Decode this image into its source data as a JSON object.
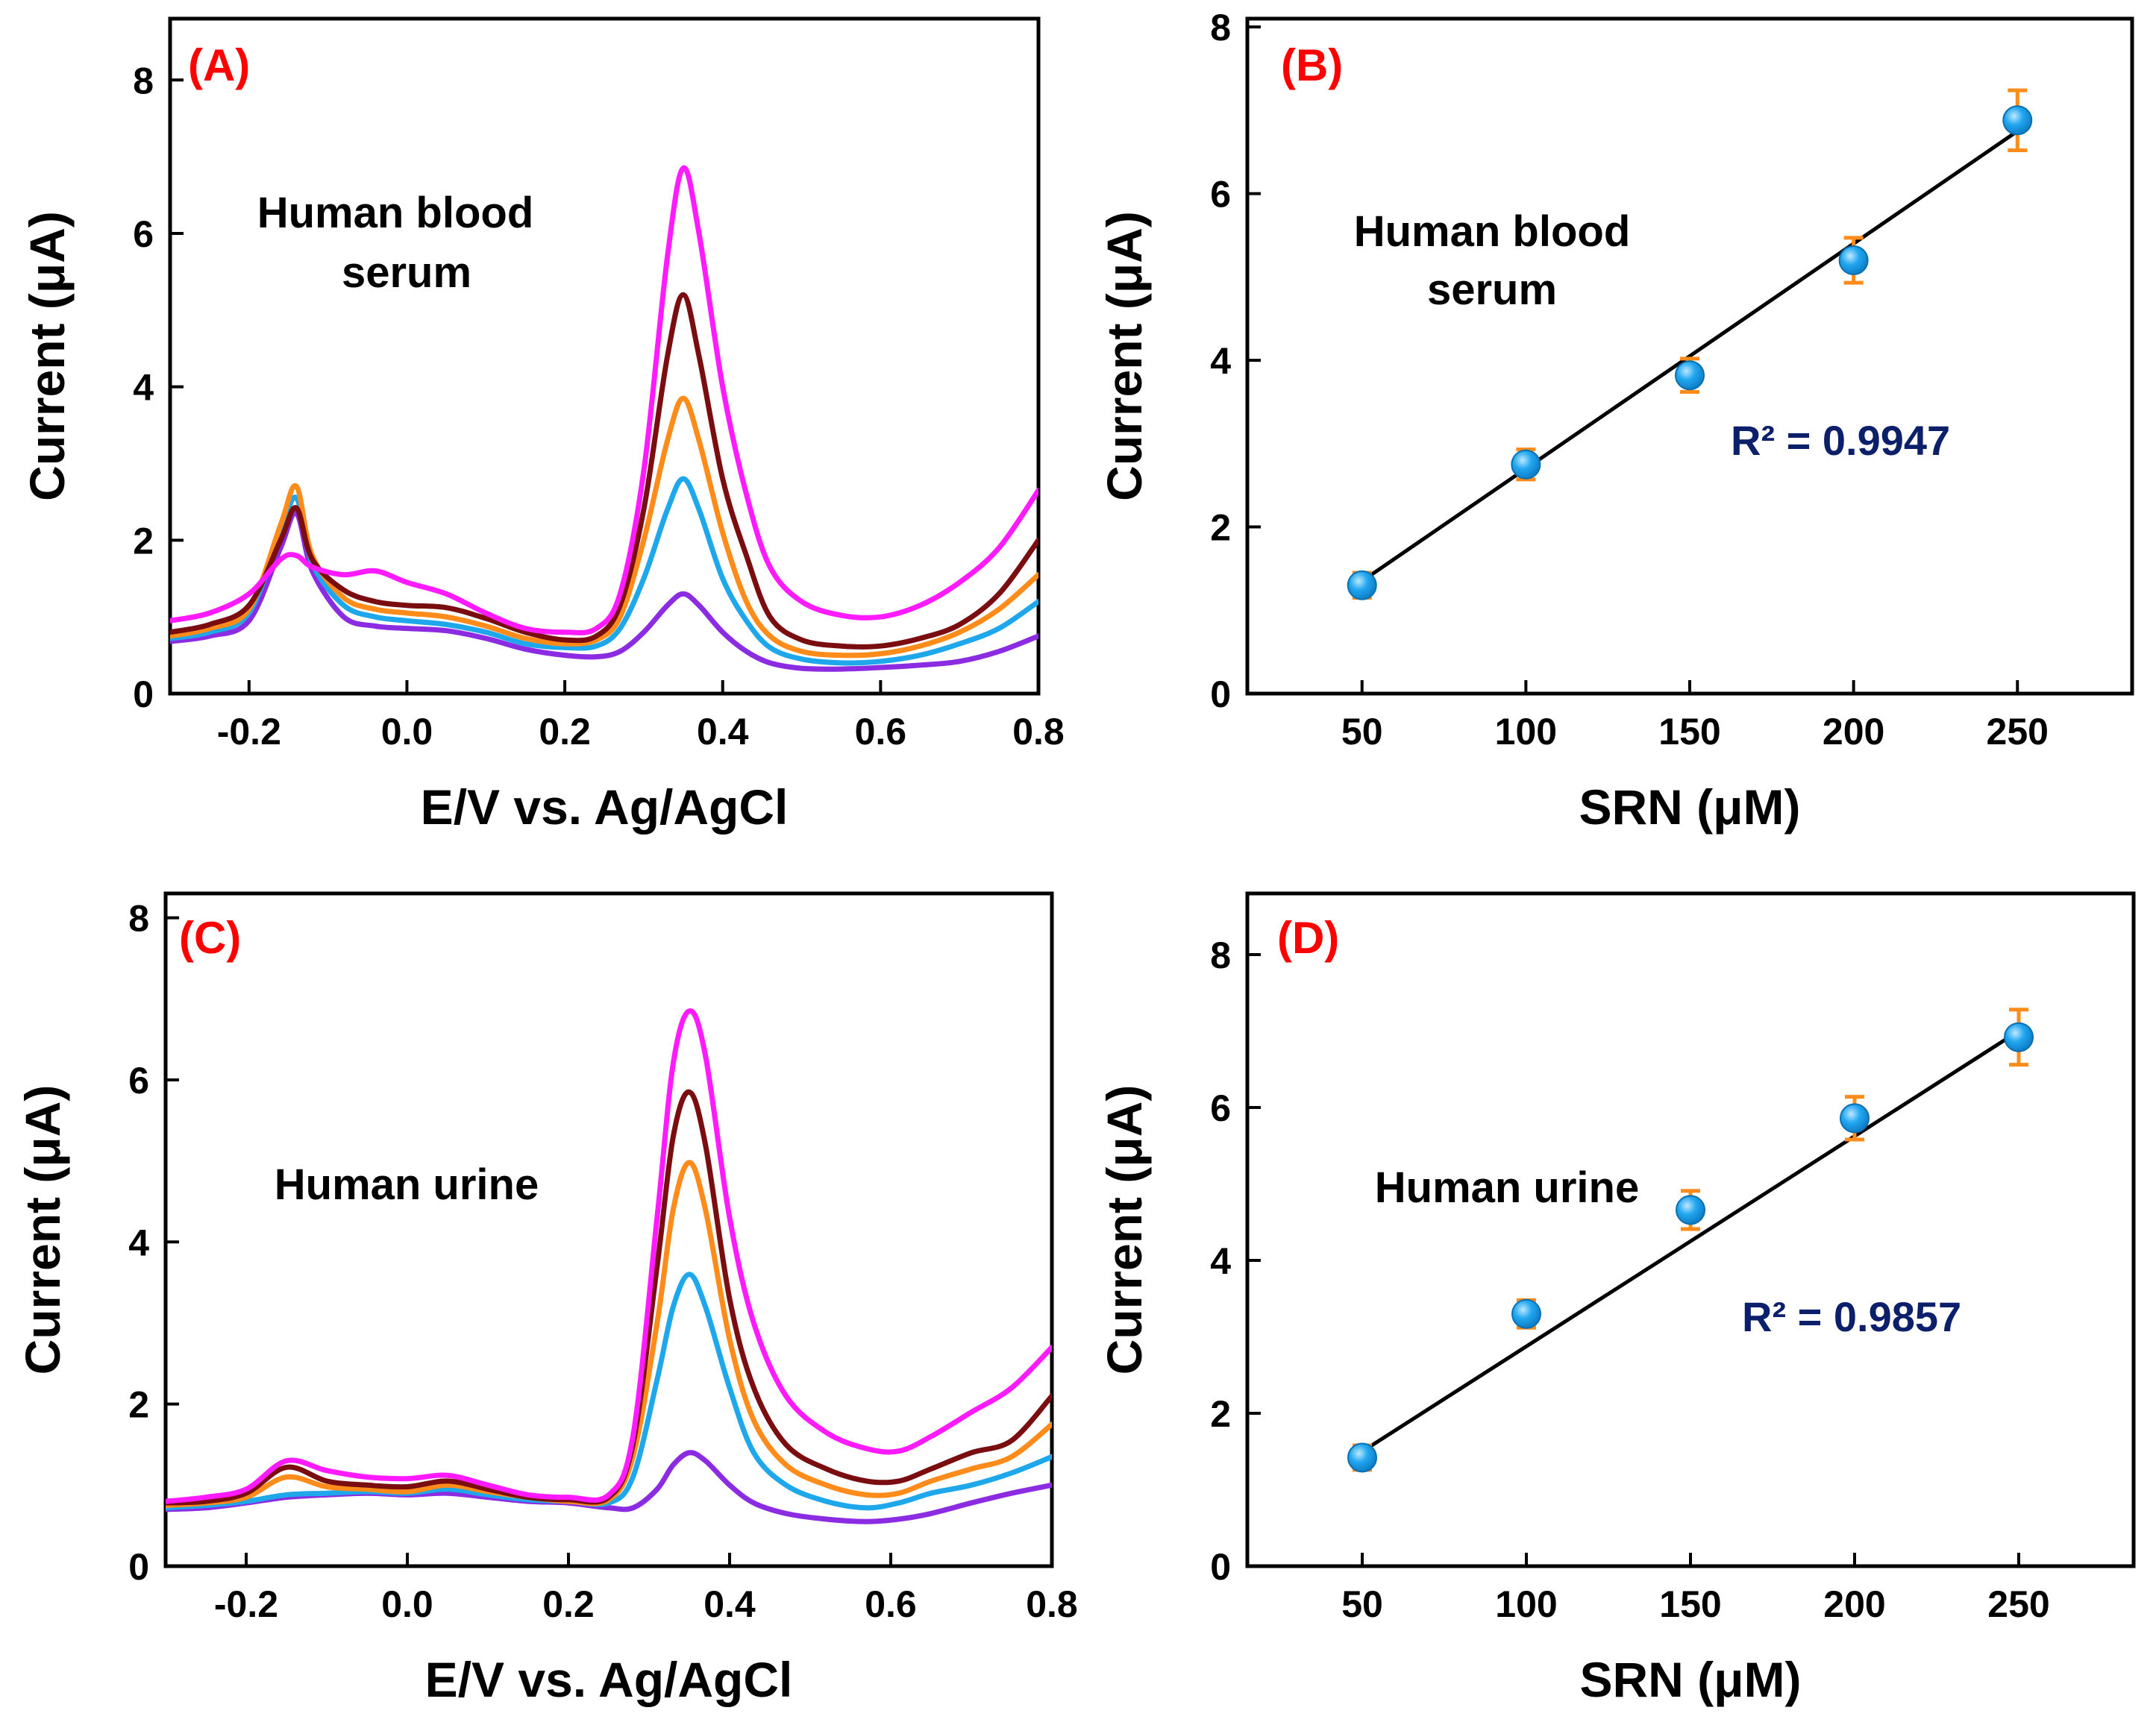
{
  "colors": {
    "panel_label": "#ff0000",
    "r2_text": "#0b1f6b",
    "fit_line": "#000000",
    "marker_fill": "#22a7f0",
    "error_bar": "#ff8c1a",
    "series": [
      "#8b2be2",
      "#1ea7ea",
      "#ff8c1a",
      "#7a0d10",
      "#ff1aff"
    ]
  },
  "chart_data": [
    {
      "id": "A",
      "type": "line",
      "panel_label": "(A)",
      "annotation": [
        "Human blood",
        "serum"
      ],
      "xlabel": "E/V vs. Ag/AgCl",
      "ylabel": "Current (μA)",
      "xlim": [
        -0.3,
        0.8
      ],
      "ylim": [
        0,
        8.8
      ],
      "xticks": [
        -0.2,
        0.0,
        0.2,
        0.4,
        0.6,
        0.8
      ],
      "xtick_labels": [
        "-0.2",
        "0.0",
        "0.2",
        "0.4",
        "0.6",
        "0.8"
      ],
      "yticks": [
        0,
        2,
        4,
        6,
        8
      ],
      "ytick_labels": [
        "0",
        "2",
        "4",
        "6",
        "8"
      ],
      "x": [
        -0.3,
        -0.25,
        -0.2,
        -0.16,
        -0.14,
        -0.12,
        -0.08,
        -0.04,
        0.0,
        0.05,
        0.1,
        0.15,
        0.2,
        0.24,
        0.27,
        0.3,
        0.33,
        0.35,
        0.37,
        0.4,
        0.43,
        0.46,
        0.5,
        0.55,
        0.6,
        0.65,
        0.7,
        0.75,
        0.8
      ],
      "series": [
        {
          "values": [
            0.68,
            0.75,
            0.95,
            1.9,
            2.35,
            1.6,
            1.0,
            0.88,
            0.85,
            0.82,
            0.72,
            0.58,
            0.5,
            0.48,
            0.55,
            0.8,
            1.15,
            1.3,
            1.15,
            0.8,
            0.55,
            0.4,
            0.33,
            0.32,
            0.34,
            0.37,
            0.42,
            0.55,
            0.75
          ]
        },
        {
          "values": [
            0.72,
            0.8,
            1.05,
            2.1,
            2.55,
            1.7,
            1.15,
            1.0,
            0.95,
            0.9,
            0.8,
            0.65,
            0.6,
            0.62,
            0.85,
            1.5,
            2.4,
            2.8,
            2.4,
            1.5,
            0.95,
            0.6,
            0.45,
            0.4,
            0.42,
            0.5,
            0.65,
            0.85,
            1.2
          ]
        },
        {
          "values": [
            0.75,
            0.85,
            1.1,
            2.2,
            2.7,
            1.8,
            1.25,
            1.1,
            1.05,
            1.0,
            0.88,
            0.72,
            0.65,
            0.7,
            1.0,
            2.0,
            3.3,
            3.85,
            3.3,
            2.1,
            1.2,
            0.75,
            0.55,
            0.5,
            0.52,
            0.62,
            0.8,
            1.1,
            1.55
          ]
        },
        {
          "values": [
            0.8,
            0.9,
            1.15,
            2.0,
            2.42,
            1.75,
            1.35,
            1.2,
            1.15,
            1.12,
            0.98,
            0.8,
            0.7,
            0.75,
            1.15,
            2.4,
            4.4,
            5.2,
            4.4,
            2.8,
            1.8,
            1.0,
            0.7,
            0.62,
            0.62,
            0.72,
            0.9,
            1.3,
            2.0
          ]
        },
        {
          "values": [
            0.95,
            1.05,
            1.3,
            1.75,
            1.8,
            1.65,
            1.55,
            1.6,
            1.45,
            1.3,
            1.05,
            0.85,
            0.8,
            0.85,
            1.3,
            2.9,
            5.7,
            6.85,
            6.0,
            4.0,
            2.6,
            1.65,
            1.2,
            1.02,
            1.0,
            1.15,
            1.45,
            1.9,
            2.65
          ]
        }
      ]
    },
    {
      "id": "B",
      "type": "scatter",
      "panel_label": "(B)",
      "annotation": [
        "Human blood",
        "serum"
      ],
      "fit_label": "R² = 0.9947",
      "xlabel": "SRN (μM)",
      "ylabel": "Current (μA)",
      "xlim": [
        15,
        285
      ],
      "ylim": [
        0,
        8.1
      ],
      "xticks": [
        50,
        100,
        150,
        200,
        250
      ],
      "xtick_labels": [
        "50",
        "100",
        "150",
        "200",
        "250"
      ],
      "yticks": [
        0,
        2,
        4,
        6,
        8
      ],
      "ytick_labels": [
        "0",
        "2",
        "4",
        "6",
        "8"
      ],
      "x": [
        50,
        100,
        150,
        200,
        250
      ],
      "y": [
        1.3,
        2.75,
        3.82,
        5.2,
        6.88
      ],
      "yerr": [
        0.15,
        0.18,
        0.2,
        0.27,
        0.36
      ],
      "fit": {
        "x": [
          50,
          250
        ],
        "y": [
          1.35,
          6.75
        ]
      }
    },
    {
      "id": "C",
      "type": "line",
      "panel_label": "(C)",
      "annotation": [
        "Human urine"
      ],
      "xlabel": "E/V vs. Ag/AgCl",
      "ylabel": "Current (μA)",
      "xlim": [
        -0.3,
        0.8
      ],
      "ylim": [
        0,
        8.3
      ],
      "xticks": [
        -0.2,
        0.0,
        0.2,
        0.4,
        0.6,
        0.8
      ],
      "xtick_labels": [
        "-0.2",
        "0.0",
        "0.2",
        "0.4",
        "0.6",
        "0.8"
      ],
      "yticks": [
        0,
        2,
        4,
        6,
        8
      ],
      "ytick_labels": [
        "0",
        "2",
        "4",
        "6",
        "8"
      ],
      "x": [
        -0.3,
        -0.25,
        -0.2,
        -0.15,
        -0.1,
        -0.05,
        0.0,
        0.05,
        0.1,
        0.15,
        0.2,
        0.25,
        0.28,
        0.31,
        0.33,
        0.35,
        0.37,
        0.4,
        0.43,
        0.47,
        0.52,
        0.57,
        0.61,
        0.65,
        0.7,
        0.75,
        0.8
      ],
      "series": [
        {
          "values": [
            0.7,
            0.72,
            0.78,
            0.85,
            0.88,
            0.9,
            0.88,
            0.9,
            0.85,
            0.8,
            0.78,
            0.72,
            0.72,
            0.95,
            1.25,
            1.4,
            1.3,
            1.0,
            0.78,
            0.65,
            0.58,
            0.55,
            0.58,
            0.65,
            0.78,
            0.9,
            1.0
          ]
        },
        {
          "values": [
            0.72,
            0.75,
            0.8,
            0.88,
            0.9,
            0.92,
            0.9,
            0.95,
            0.88,
            0.82,
            0.8,
            0.78,
            1.1,
            2.3,
            3.2,
            3.6,
            3.2,
            2.2,
            1.4,
            1.0,
            0.8,
            0.72,
            0.78,
            0.9,
            1.0,
            1.15,
            1.35
          ]
        },
        {
          "values": [
            0.75,
            0.78,
            0.85,
            1.1,
            0.98,
            0.95,
            0.92,
            1.0,
            0.92,
            0.85,
            0.8,
            0.82,
            1.35,
            3.0,
            4.4,
            4.98,
            4.4,
            2.8,
            1.8,
            1.25,
            1.0,
            0.88,
            0.9,
            1.05,
            1.2,
            1.35,
            1.75
          ]
        },
        {
          "values": [
            0.78,
            0.8,
            0.9,
            1.22,
            1.05,
            1.0,
            0.98,
            1.05,
            0.95,
            0.85,
            0.82,
            0.85,
            1.5,
            3.7,
            5.3,
            5.85,
            5.2,
            3.3,
            2.2,
            1.5,
            1.2,
            1.05,
            1.05,
            1.2,
            1.4,
            1.55,
            2.1
          ]
        },
        {
          "values": [
            0.8,
            0.85,
            0.95,
            1.3,
            1.18,
            1.1,
            1.08,
            1.12,
            1.0,
            0.88,
            0.85,
            0.88,
            1.6,
            4.3,
            6.2,
            6.85,
            6.3,
            4.3,
            3.0,
            2.1,
            1.65,
            1.45,
            1.42,
            1.6,
            1.9,
            2.2,
            2.7
          ]
        }
      ]
    },
    {
      "id": "D",
      "type": "scatter",
      "panel_label": "(D)",
      "annotation": [
        "Human urine"
      ],
      "fit_label": "R² = 0.9857",
      "xlabel": "SRN (μM)",
      "ylabel": "Current (μA)",
      "xlim": [
        15,
        285
      ],
      "ylim": [
        0,
        8.8
      ],
      "xticks": [
        50,
        100,
        150,
        200,
        250
      ],
      "xtick_labels": [
        "50",
        "100",
        "150",
        "200",
        "250"
      ],
      "yticks": [
        0,
        2,
        4,
        6,
        8
      ],
      "ytick_labels": [
        "0",
        "2",
        "4",
        "6",
        "8"
      ],
      "x": [
        50,
        100,
        150,
        200,
        250
      ],
      "y": [
        1.42,
        3.3,
        4.66,
        5.86,
        6.92
      ],
      "yerr": [
        0.16,
        0.18,
        0.25,
        0.28,
        0.36
      ],
      "fit": {
        "x": [
          50,
          250
        ],
        "y": [
          1.5,
          7.0
        ]
      }
    }
  ]
}
